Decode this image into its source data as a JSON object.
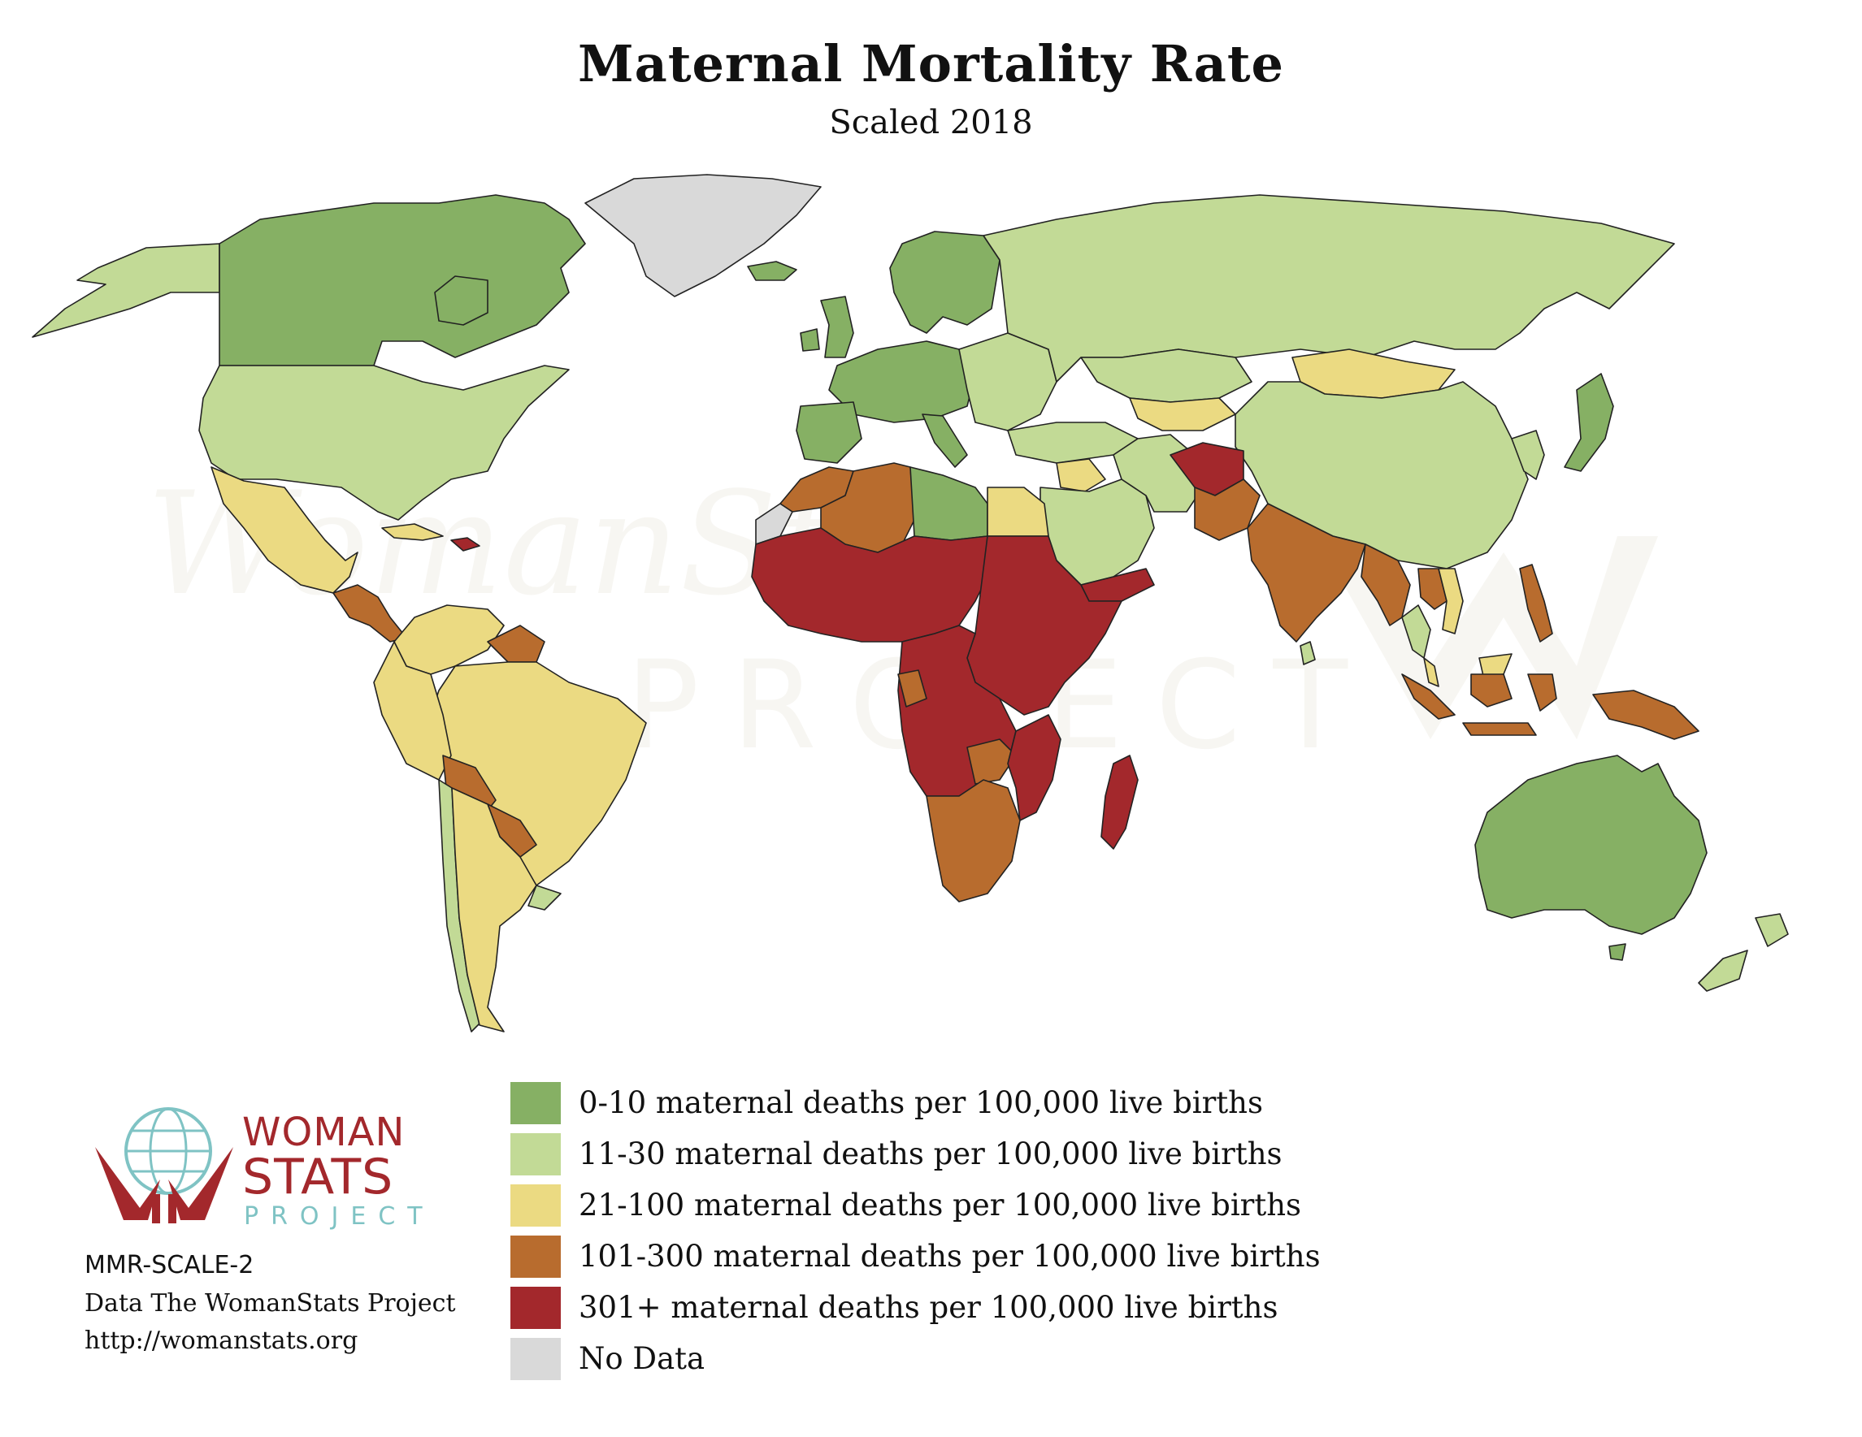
{
  "title": "Maternal Mortality Rate",
  "subtitle": "Scaled 2018",
  "colors": {
    "c0_10": "#86b064",
    "c11_30": "#c2da96",
    "c21_100": "#ebda82",
    "c101_300": "#b86c2e",
    "c301_plus": "#a3282c",
    "no_data": "#d9d9d9",
    "brand_red": "#a3282c",
    "brand_teal": "#7fc3c4"
  },
  "legend": [
    {
      "label": "0-10 maternal deaths per 100,000 live births",
      "color": "#86b064"
    },
    {
      "label": "11-30 maternal deaths per 100,000 live births",
      "color": "#c2da96"
    },
    {
      "label": "21-100 maternal deaths per 100,000 live births",
      "color": "#ebda82"
    },
    {
      "label": "101-300 maternal deaths per 100,000 live births",
      "color": "#b86c2e"
    },
    {
      "label": "301+ maternal deaths per 100,000 live births",
      "color": "#a3282c"
    },
    {
      "label": "No Data",
      "color": "#d9d9d9"
    }
  ],
  "logo": {
    "line1": "WOMAN",
    "line2": "STATS",
    "line3": "PROJECT"
  },
  "credits": {
    "code": "MMR-SCALE-2",
    "source": "Data The WomanStats Project",
    "url": "http://womanstats.org"
  },
  "watermark": {
    "word1": "WomanStats",
    "word2": "PROJECT"
  },
  "regions": [
    {
      "name": "alaska",
      "category": "11-30"
    },
    {
      "name": "canada",
      "category": "0-10"
    },
    {
      "name": "greenland",
      "category": "No Data"
    },
    {
      "name": "iceland",
      "category": "0-10"
    },
    {
      "name": "usa",
      "category": "11-30"
    },
    {
      "name": "mexico",
      "category": "21-100"
    },
    {
      "name": "central-america",
      "category": "101-300"
    },
    {
      "name": "cuba",
      "category": "21-100"
    },
    {
      "name": "hispaniola",
      "category": "301+"
    },
    {
      "name": "colombia-venezuela",
      "category": "21-100"
    },
    {
      "name": "guianas",
      "category": "101-300"
    },
    {
      "name": "brazil",
      "category": "21-100"
    },
    {
      "name": "peru-ecuador",
      "category": "21-100"
    },
    {
      "name": "bolivia",
      "category": "101-300"
    },
    {
      "name": "paraguay",
      "category": "101-300"
    },
    {
      "name": "chile",
      "category": "11-30"
    },
    {
      "name": "argentina",
      "category": "21-100"
    },
    {
      "name": "uruguay",
      "category": "11-30"
    },
    {
      "name": "british-isles",
      "category": "0-10"
    },
    {
      "name": "scandinavia",
      "category": "0-10"
    },
    {
      "name": "western-europe",
      "category": "0-10"
    },
    {
      "name": "iberia",
      "category": "0-10"
    },
    {
      "name": "italy",
      "category": "0-10"
    },
    {
      "name": "eastern-europe",
      "category": "11-30"
    },
    {
      "name": "russia",
      "category": "11-30"
    },
    {
      "name": "kazakhstan",
      "category": "11-30"
    },
    {
      "name": "central-asia",
      "category": "21-100"
    },
    {
      "name": "mongolia",
      "category": "21-100"
    },
    {
      "name": "china",
      "category": "11-30"
    },
    {
      "name": "korea",
      "category": "11-30"
    },
    {
      "name": "japan",
      "category": "0-10"
    },
    {
      "name": "turkey-caucasus",
      "category": "11-30"
    },
    {
      "name": "middle-east",
      "category": "11-30"
    },
    {
      "name": "levant",
      "category": "21-100"
    },
    {
      "name": "iran",
      "category": "11-30"
    },
    {
      "name": "yemen",
      "category": "301+"
    },
    {
      "name": "afghanistan",
      "category": "301+"
    },
    {
      "name": "pakistan",
      "category": "101-300"
    },
    {
      "name": "india",
      "category": "101-300"
    },
    {
      "name": "sri-lanka",
      "category": "11-30"
    },
    {
      "name": "myanmar-bangladesh",
      "category": "101-300"
    },
    {
      "name": "thailand",
      "category": "11-30"
    },
    {
      "name": "indochina",
      "category": "21-100"
    },
    {
      "name": "laos",
      "category": "101-300"
    },
    {
      "name": "philippines",
      "category": "101-300"
    },
    {
      "name": "malaysia",
      "category": "21-100"
    },
    {
      "name": "indonesia",
      "category": "101-300"
    },
    {
      "name": "papua-new-guinea",
      "category": "101-300"
    },
    {
      "name": "australia",
      "category": "0-10"
    },
    {
      "name": "tasmania",
      "category": "0-10"
    },
    {
      "name": "new-zealand",
      "category": "11-30"
    },
    {
      "name": "western-sahara",
      "category": "No Data"
    },
    {
      "name": "morocco",
      "category": "101-300"
    },
    {
      "name": "algeria",
      "category": "101-300"
    },
    {
      "name": "libya",
      "category": "0-10"
    },
    {
      "name": "egypt",
      "category": "21-100"
    },
    {
      "name": "sahel-west-africa",
      "category": "301+"
    },
    {
      "name": "central-africa",
      "category": "301+"
    },
    {
      "name": "east-africa",
      "category": "301+"
    },
    {
      "name": "gabon",
      "category": "101-300"
    },
    {
      "name": "zambia",
      "category": "101-300"
    },
    {
      "name": "mozambique",
      "category": "301+"
    },
    {
      "name": "southern-africa",
      "category": "101-300"
    },
    {
      "name": "madagascar",
      "category": "301+"
    }
  ]
}
